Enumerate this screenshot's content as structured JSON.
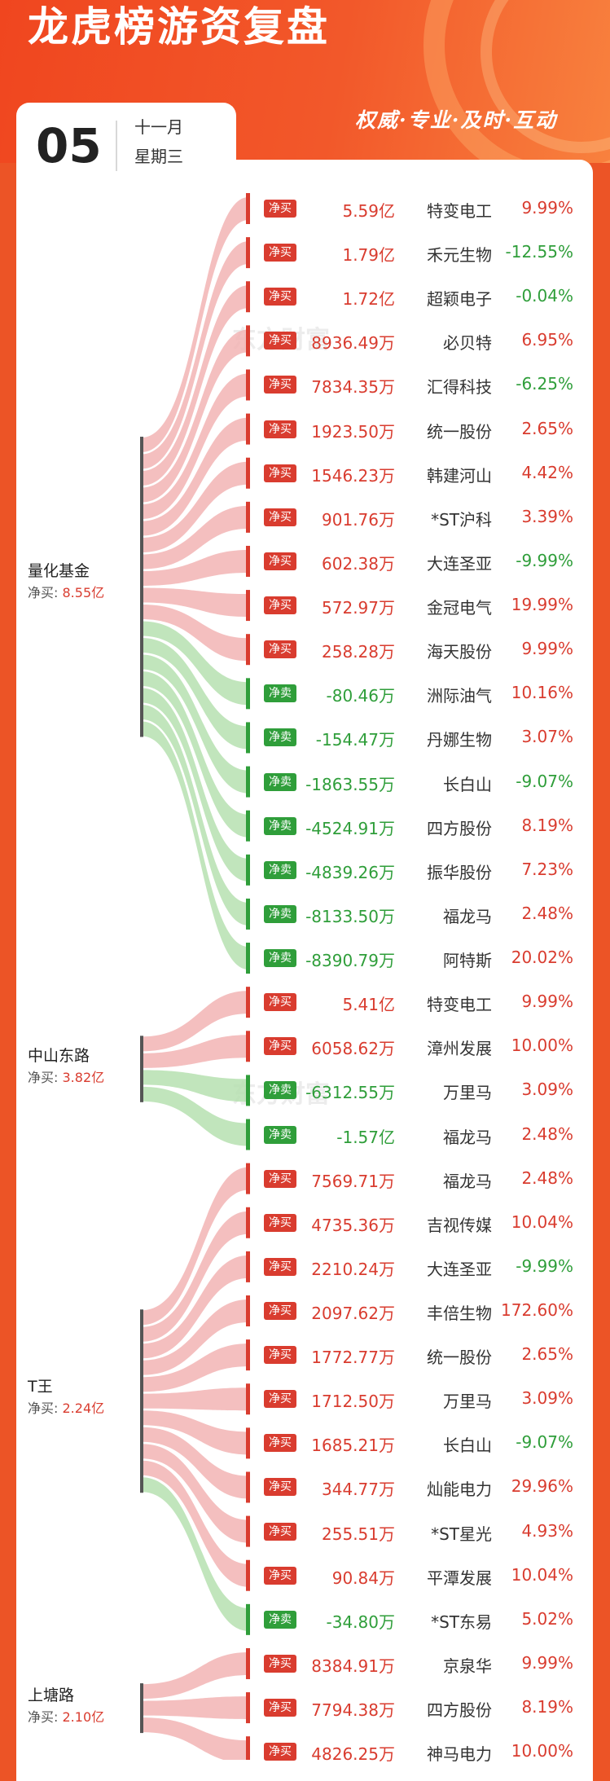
{
  "header": {
    "title": "龙虎榜游资复盘",
    "day": "05",
    "month": "十一月",
    "weekday": "星期三",
    "slogan": "权威·专业·及时·互动",
    "watermark": "东方财富"
  },
  "colors": {
    "buy": "#d93c2f",
    "sell": "#2f9e3a",
    "buy_band": "#f2b4b4",
    "sell_band": "#b6e0b0",
    "brand": "#ec5426"
  },
  "chart_data": {
    "type": "sankey",
    "seats": [
      {
        "name": "量化基金",
        "net_label": "净买:",
        "net_value": "8.55亿",
        "trades": [
          {
            "side": "buy",
            "badge": "净买",
            "amount": "5.59亿",
            "stock": "特变电工",
            "pct": "9.99%"
          },
          {
            "side": "buy",
            "badge": "净买",
            "amount": "1.79亿",
            "stock": "禾元生物",
            "pct": "-12.55%"
          },
          {
            "side": "buy",
            "badge": "净买",
            "amount": "1.72亿",
            "stock": "超颖电子",
            "pct": "-0.04%"
          },
          {
            "side": "buy",
            "badge": "净买",
            "amount": "8936.49万",
            "stock": "必贝特",
            "pct": "6.95%"
          },
          {
            "side": "buy",
            "badge": "净买",
            "amount": "7834.35万",
            "stock": "汇得科技",
            "pct": "-6.25%"
          },
          {
            "side": "buy",
            "badge": "净买",
            "amount": "1923.50万",
            "stock": "统一股份",
            "pct": "2.65%"
          },
          {
            "side": "buy",
            "badge": "净买",
            "amount": "1546.23万",
            "stock": "韩建河山",
            "pct": "4.42%"
          },
          {
            "side": "buy",
            "badge": "净买",
            "amount": "901.76万",
            "stock": "*ST沪科",
            "pct": "3.39%"
          },
          {
            "side": "buy",
            "badge": "净买",
            "amount": "602.38万",
            "stock": "大连圣亚",
            "pct": "-9.99%"
          },
          {
            "side": "buy",
            "badge": "净买",
            "amount": "572.97万",
            "stock": "金冠电气",
            "pct": "19.99%"
          },
          {
            "side": "buy",
            "badge": "净买",
            "amount": "258.28万",
            "stock": "海天股份",
            "pct": "9.99%"
          },
          {
            "side": "sell",
            "badge": "净卖",
            "amount": "-80.46万",
            "stock": "洲际油气",
            "pct": "10.16%"
          },
          {
            "side": "sell",
            "badge": "净卖",
            "amount": "-154.47万",
            "stock": "丹娜生物",
            "pct": "3.07%"
          },
          {
            "side": "sell",
            "badge": "净卖",
            "amount": "-1863.55万",
            "stock": "长白山",
            "pct": "-9.07%"
          },
          {
            "side": "sell",
            "badge": "净卖",
            "amount": "-4524.91万",
            "stock": "四方股份",
            "pct": "8.19%"
          },
          {
            "side": "sell",
            "badge": "净卖",
            "amount": "-4839.26万",
            "stock": "振华股份",
            "pct": "7.23%"
          },
          {
            "side": "sell",
            "badge": "净卖",
            "amount": "-8133.50万",
            "stock": "福龙马",
            "pct": "2.48%"
          },
          {
            "side": "sell",
            "badge": "净卖",
            "amount": "-8390.79万",
            "stock": "阿特斯",
            "pct": "20.02%"
          }
        ]
      },
      {
        "name": "中山东路",
        "net_label": "净买:",
        "net_value": "3.82亿",
        "trades": [
          {
            "side": "buy",
            "badge": "净买",
            "amount": "5.41亿",
            "stock": "特变电工",
            "pct": "9.99%"
          },
          {
            "side": "buy",
            "badge": "净买",
            "amount": "6058.62万",
            "stock": "漳州发展",
            "pct": "10.00%"
          },
          {
            "side": "sell",
            "badge": "净卖",
            "amount": "-6312.55万",
            "stock": "万里马",
            "pct": "3.09%"
          },
          {
            "side": "sell",
            "badge": "净卖",
            "amount": "-1.57亿",
            "stock": "福龙马",
            "pct": "2.48%"
          }
        ]
      },
      {
        "name": "T王",
        "net_label": "净买:",
        "net_value": "2.24亿",
        "trades": [
          {
            "side": "buy",
            "badge": "净买",
            "amount": "7569.71万",
            "stock": "福龙马",
            "pct": "2.48%"
          },
          {
            "side": "buy",
            "badge": "净买",
            "amount": "4735.36万",
            "stock": "吉视传媒",
            "pct": "10.04%"
          },
          {
            "side": "buy",
            "badge": "净买",
            "amount": "2210.24万",
            "stock": "大连圣亚",
            "pct": "-9.99%"
          },
          {
            "side": "buy",
            "badge": "净买",
            "amount": "2097.62万",
            "stock": "丰倍生物",
            "pct": "172.60%"
          },
          {
            "side": "buy",
            "badge": "净买",
            "amount": "1772.77万",
            "stock": "统一股份",
            "pct": "2.65%"
          },
          {
            "side": "buy",
            "badge": "净买",
            "amount": "1712.50万",
            "stock": "万里马",
            "pct": "3.09%"
          },
          {
            "side": "buy",
            "badge": "净买",
            "amount": "1685.21万",
            "stock": "长白山",
            "pct": "-9.07%"
          },
          {
            "side": "buy",
            "badge": "净买",
            "amount": "344.77万",
            "stock": "灿能电力",
            "pct": "29.96%"
          },
          {
            "side": "buy",
            "badge": "净买",
            "amount": "255.51万",
            "stock": "*ST星光",
            "pct": "4.93%"
          },
          {
            "side": "buy",
            "badge": "净买",
            "amount": "90.84万",
            "stock": "平潭发展",
            "pct": "10.04%"
          },
          {
            "side": "sell",
            "badge": "净卖",
            "amount": "-34.80万",
            "stock": "*ST东易",
            "pct": "5.02%"
          }
        ]
      },
      {
        "name": "上塘路",
        "net_label": "净买:",
        "net_value": "2.10亿",
        "trades": [
          {
            "side": "buy",
            "badge": "净买",
            "amount": "8384.91万",
            "stock": "京泉华",
            "pct": "9.99%"
          },
          {
            "side": "buy",
            "badge": "净买",
            "amount": "7794.38万",
            "stock": "四方股份",
            "pct": "8.19%"
          },
          {
            "side": "buy",
            "badge": "净买",
            "amount": "4826.25万",
            "stock": "神马电力",
            "pct": "10.00%"
          }
        ]
      }
    ]
  }
}
